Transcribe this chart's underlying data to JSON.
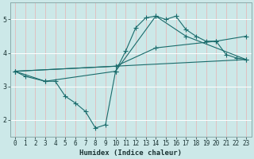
{
  "xlabel": "Humidex (Indice chaleur)",
  "bg_color": "#cce8e8",
  "grid_color_h": "#ffffff",
  "grid_color_v": "#e8b0b0",
  "line_color": "#1a6b6b",
  "xlim": [
    -0.5,
    23.5
  ],
  "ylim": [
    1.5,
    5.5
  ],
  "xticks": [
    0,
    1,
    2,
    3,
    4,
    5,
    6,
    7,
    8,
    9,
    10,
    11,
    12,
    13,
    14,
    15,
    16,
    17,
    18,
    19,
    20,
    21,
    22,
    23
  ],
  "yticks": [
    2,
    3,
    4,
    5
  ],
  "line1_x": [
    0,
    1,
    3,
    4,
    5,
    6,
    7,
    8,
    9,
    10,
    11,
    12,
    13,
    14,
    15,
    16,
    17,
    18,
    19,
    20,
    21,
    22,
    23
  ],
  "line1_y": [
    3.45,
    3.3,
    3.15,
    3.15,
    2.7,
    2.5,
    2.25,
    1.75,
    1.85,
    3.45,
    4.05,
    4.75,
    5.05,
    5.1,
    5.0,
    5.1,
    4.7,
    4.5,
    4.35,
    4.35,
    3.95,
    3.85,
    3.8
  ],
  "line2_x": [
    0,
    3,
    10,
    14,
    17,
    23
  ],
  "line2_y": [
    3.45,
    3.15,
    3.45,
    5.1,
    4.5,
    3.8
  ],
  "line3_x": [
    0,
    10,
    14,
    20,
    23
  ],
  "line3_y": [
    3.45,
    3.6,
    4.15,
    4.35,
    4.5
  ],
  "line4_x": [
    0,
    23
  ],
  "line4_y": [
    3.45,
    3.8
  ]
}
